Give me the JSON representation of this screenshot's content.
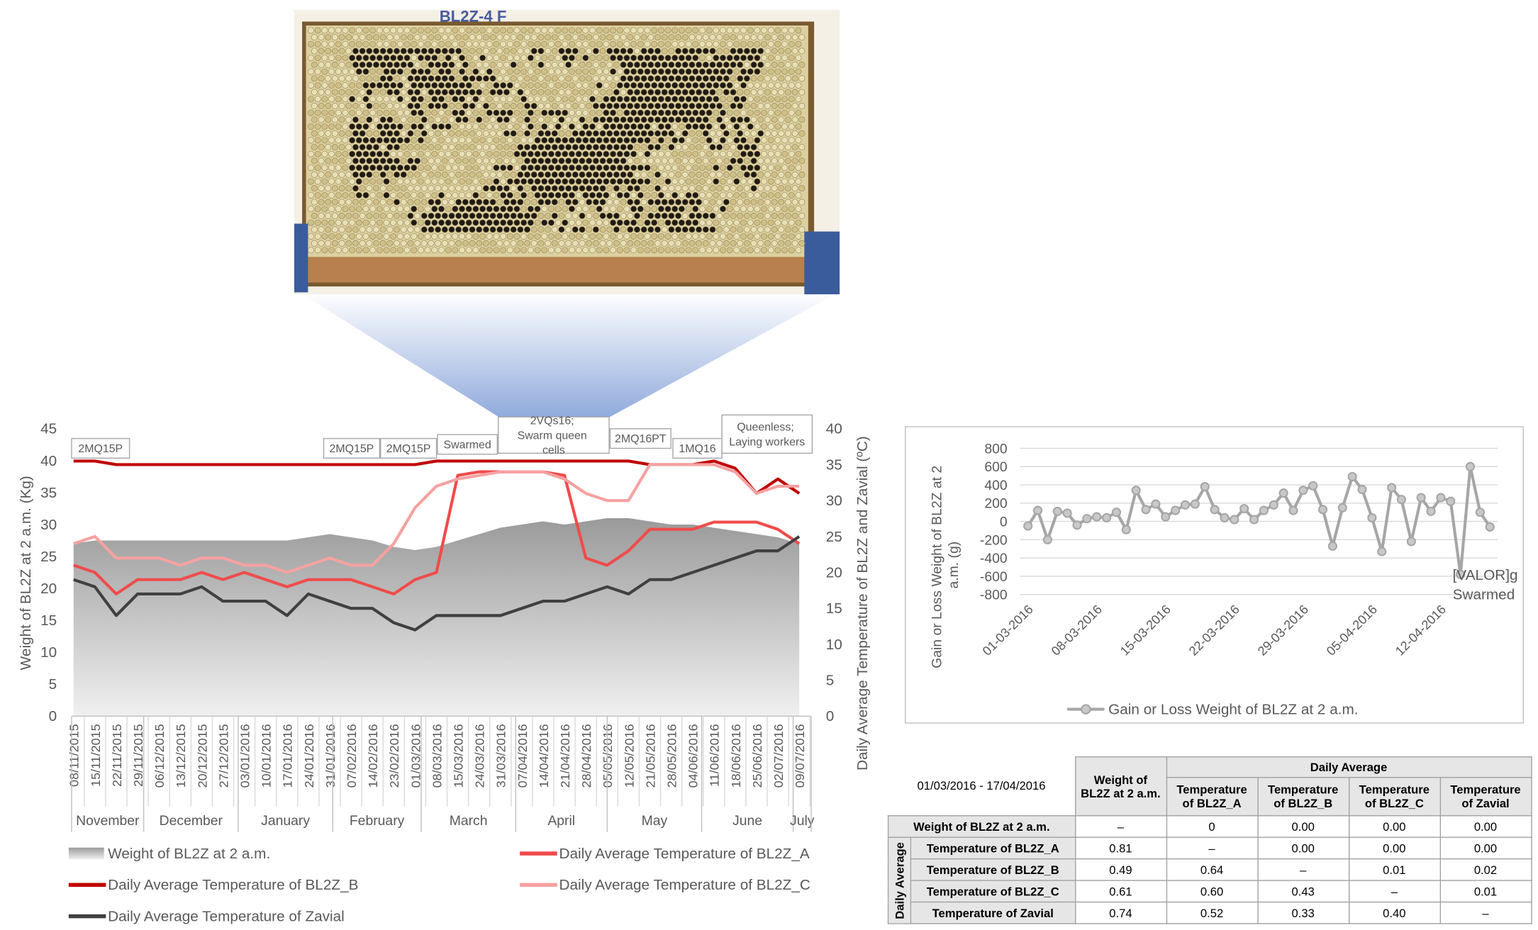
{
  "photo": {
    "label": "BL2Z-4  F"
  },
  "chart_data": [
    {
      "type": "line",
      "ylabel": "Weight of BL2Z at 2 a.m. (Kg)",
      "y2label": "Daily Average Temperature of BL2Z and Zavial (ºC)",
      "categories": [
        "08/11/2015",
        "15/11/2015",
        "22/11/2015",
        "29/11/2015",
        "06/12/2015",
        "13/12/2015",
        "20/12/2015",
        "27/12/2015",
        "03/01/2016",
        "10/01/2016",
        "17/01/2016",
        "24/01/2016",
        "31/01/2016",
        "07/02/2016",
        "14/02/2016",
        "23/02/2016",
        "01/03/2016",
        "08/03/2016",
        "15/03/2016",
        "24/03/2016",
        "31/03/2016",
        "07/04/2016",
        "14/04/2016",
        "21/04/2016",
        "28/04/2016",
        "05/05/2016",
        "12/05/2016",
        "21/05/2016",
        "28/05/2016",
        "04/06/2016",
        "11/06/2016",
        "18/06/2016",
        "25/06/2016",
        "02/07/2016",
        "09/07/2016"
      ],
      "months": [
        "November",
        "December",
        "January",
        "February",
        "March",
        "April",
        "May",
        "June",
        "July"
      ],
      "ylim": [
        0,
        45
      ],
      "yticks": [
        0,
        5,
        10,
        15,
        20,
        25,
        30,
        35,
        40,
        45
      ],
      "y2lim": [
        0,
        40
      ],
      "y2ticks": [
        0,
        5,
        10,
        15,
        20,
        25,
        30,
        35,
        40
      ],
      "series": [
        {
          "name": "Weight of BL2Z at 2 a.m.",
          "type": "area",
          "color": "#a6a6a6",
          "values": [
            27,
            27.5,
            27.5,
            27.5,
            27.5,
            27.5,
            27.5,
            27.5,
            27.5,
            27.5,
            27.5,
            28,
            28.5,
            28,
            27.5,
            26.5,
            26,
            26.5,
            27.5,
            28.5,
            29.5,
            30,
            30.5,
            30,
            30.5,
            31,
            31,
            30.5,
            30,
            30,
            29.5,
            29,
            28.5,
            28,
            27
          ]
        },
        {
          "name": "Daily Average Temperature of BL2Z_A",
          "axis": "y2",
          "color": "#f04b4b",
          "values": [
            21,
            20,
            17,
            19,
            19,
            19,
            20,
            19,
            20,
            19,
            18,
            19,
            19,
            19,
            18,
            17,
            19,
            20,
            33.5,
            34,
            34,
            34,
            34,
            33.5,
            22,
            21,
            23,
            26,
            26,
            26,
            27,
            27,
            27,
            26,
            24
          ]
        },
        {
          "name": "Daily Average Temperature of BL2Z_B",
          "axis": "y2",
          "color": "#c00000",
          "values": [
            35.5,
            35.5,
            35,
            35,
            35,
            35,
            35,
            35,
            35,
            35,
            35,
            35,
            35,
            35,
            35,
            35,
            35,
            35.5,
            35.5,
            35.5,
            35.5,
            35.5,
            35.5,
            35.5,
            35.5,
            35.5,
            35.5,
            35,
            35,
            35,
            35.5,
            34.5,
            31,
            33,
            31
          ]
        },
        {
          "name": "Daily Average Temperature of BL2Z_C",
          "axis": "y2",
          "color": "#f7a1a1",
          "values": [
            24,
            25,
            22,
            22,
            22,
            21,
            22,
            22,
            21,
            21,
            20,
            21,
            22,
            21,
            21,
            24,
            29,
            32,
            33,
            33.5,
            34,
            34,
            34,
            33,
            31,
            30,
            30,
            35,
            35,
            35,
            35,
            34,
            31,
            32,
            32
          ]
        },
        {
          "name": "Daily Average Temperature of Zavial",
          "axis": "y2",
          "color": "#404040",
          "values": [
            19,
            18,
            14,
            17,
            17,
            17,
            18,
            16,
            16,
            16,
            14,
            17,
            16,
            15,
            15,
            13,
            12,
            14,
            14,
            14,
            14,
            15,
            16,
            16,
            17,
            18,
            17,
            19,
            19,
            20,
            21,
            22,
            23,
            23,
            25
          ]
        }
      ],
      "annotations": [
        "2MQ15P",
        "2MQ15P",
        "2MQ15P",
        "Swarmed",
        "2VQs16; Swarm queen cells",
        "2MQ16PT",
        "1MQ16",
        "Queenless; Laying workers"
      ]
    },
    {
      "type": "line",
      "ylabel": "Gain or Loss Weight of BL2Z at 2 a.m. (g)",
      "categories": [
        "01-03-2016",
        null,
        null,
        null,
        null,
        null,
        null,
        "08-03-2016",
        null,
        null,
        null,
        null,
        null,
        null,
        "15-03-2016",
        null,
        null,
        null,
        null,
        null,
        null,
        "22-03-2016",
        null,
        null,
        null,
        null,
        null,
        null,
        "29-03-2016",
        null,
        null,
        null,
        null,
        null,
        null,
        "05-04-2016",
        null,
        null,
        null,
        null,
        null,
        null,
        "12-04-2016",
        null,
        null,
        null,
        null,
        null
      ],
      "ylim": [
        -800,
        800
      ],
      "yticks": [
        -800,
        -600,
        -400,
        -200,
        0,
        200,
        400,
        600,
        800
      ],
      "grid": true,
      "legend": "bottom",
      "series": [
        {
          "name": "Gain or Loss Weight of BL2Z at 2 a.m.",
          "color": "#a6a6a6",
          "values": [
            -50,
            120,
            -200,
            110,
            90,
            -40,
            30,
            50,
            40,
            100,
            -90,
            340,
            130,
            190,
            50,
            120,
            180,
            190,
            380,
            130,
            40,
            20,
            140,
            20,
            120,
            180,
            310,
            120,
            340,
            390,
            130,
            -270,
            150,
            490,
            350,
            40,
            -330,
            370,
            240,
            -220,
            260,
            110,
            260,
            220,
            -580,
            600,
            100,
            -60
          ]
        }
      ],
      "annotations": [
        "[VALOR]g Swarmed"
      ]
    }
  ],
  "table": {
    "period": "01/03/2016 - 17/04/2016",
    "group_header": "Daily Average",
    "row_group": "Daily Average",
    "columns": [
      "Weight of BL2Z at 2 a.m.",
      "Temperature of BL2Z_A",
      "Temperature of BL2Z_B",
      "Temperature of BL2Z_C",
      "Temperature of Zavial"
    ],
    "rows": [
      {
        "label": "Weight of BL2Z at 2 a.m.",
        "cells": [
          "–",
          "0",
          "0.00",
          "0.00",
          "0.00"
        ]
      },
      {
        "label": "Temperature of BL2Z_A",
        "cells": [
          "0.81",
          "–",
          "0.00",
          "0.00",
          "0.00"
        ]
      },
      {
        "label": "Temperature of BL2Z_B",
        "cells": [
          "0.49",
          "0.64",
          "–",
          "0.01",
          "0.02"
        ]
      },
      {
        "label": "Temperature of BL2Z_C",
        "cells": [
          "0.61",
          "0.60",
          "0.43",
          "–",
          "0.01"
        ]
      },
      {
        "label": "Temperature of Zavial",
        "cells": [
          "0.74",
          "0.52",
          "0.33",
          "0.40",
          "–"
        ]
      }
    ]
  }
}
